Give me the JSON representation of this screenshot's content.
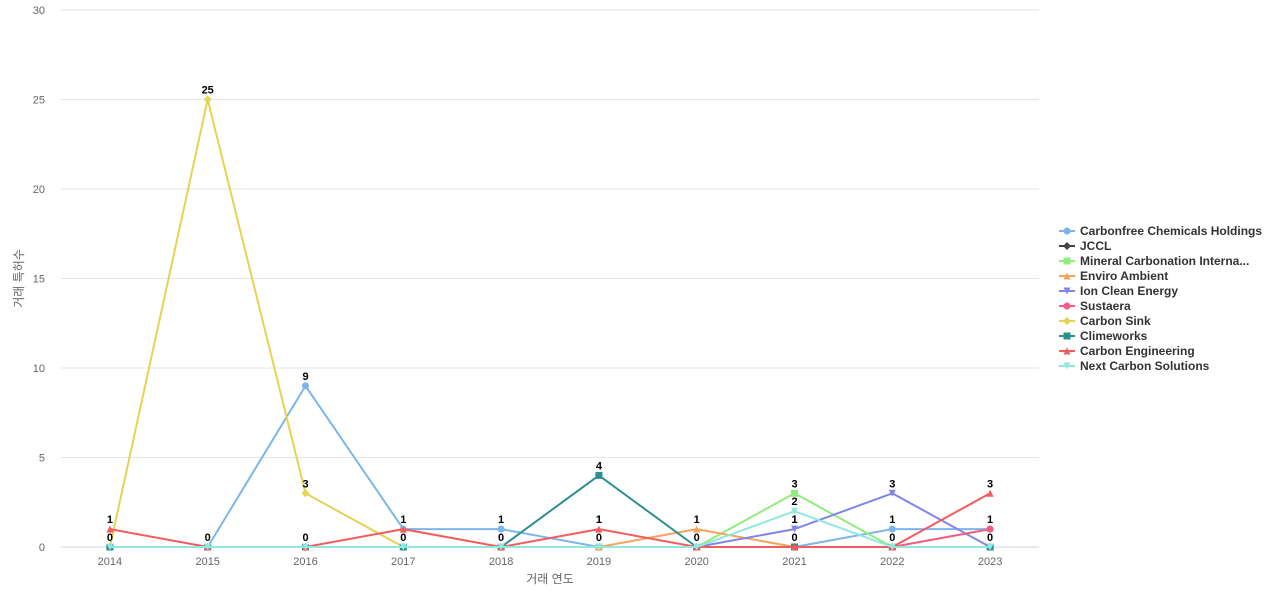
{
  "chart_data": {
    "type": "line",
    "xlabel": "거래 연도",
    "ylabel": "거래 특허수",
    "ylim": [
      0,
      30
    ],
    "y_ticks": [
      0,
      5,
      10,
      15,
      20,
      25,
      30
    ],
    "categories": [
      "2014",
      "2015",
      "2016",
      "2017",
      "2018",
      "2019",
      "2020",
      "2021",
      "2022",
      "2023"
    ],
    "grid": true,
    "legend_position": "right",
    "series": [
      {
        "name": "Carbonfree Chemicals Holdings",
        "color": "#7cb5ec",
        "marker": "circle",
        "values": [
          0,
          0,
          9,
          1,
          1,
          0,
          0,
          0,
          1,
          1
        ],
        "labels": [
          false,
          false,
          true,
          false,
          true,
          false,
          false,
          false,
          true,
          false
        ]
      },
      {
        "name": "JCCL",
        "color": "#434348",
        "marker": "diamond",
        "values": [
          0,
          0,
          0,
          0,
          0,
          0,
          0,
          0,
          0,
          0
        ],
        "labels": [
          false,
          false,
          false,
          false,
          false,
          false,
          false,
          false,
          false,
          false
        ]
      },
      {
        "name": "Mineral Carbonation Interna...",
        "color": "#90ed7d",
        "marker": "square",
        "values": [
          0,
          0,
          0,
          0,
          0,
          0,
          0,
          3,
          0,
          0
        ],
        "labels": [
          false,
          false,
          false,
          false,
          false,
          false,
          false,
          true,
          false,
          false
        ]
      },
      {
        "name": "Enviro Ambient",
        "color": "#f7a35c",
        "marker": "triangle",
        "values": [
          0,
          0,
          0,
          0,
          0,
          0,
          1,
          0,
          0,
          0
        ],
        "labels": [
          false,
          false,
          false,
          false,
          false,
          false,
          true,
          false,
          false,
          false
        ]
      },
      {
        "name": "Ion Clean Energy",
        "color": "#8085e9",
        "marker": "triangle-down",
        "values": [
          0,
          0,
          0,
          0,
          0,
          0,
          0,
          1,
          3,
          0
        ],
        "labels": [
          false,
          false,
          false,
          false,
          false,
          false,
          false,
          true,
          true,
          false
        ]
      },
      {
        "name": "Sustaera",
        "color": "#f15c80",
        "marker": "circle",
        "values": [
          0,
          0,
          0,
          0,
          0,
          0,
          0,
          0,
          0,
          1
        ],
        "labels": [
          false,
          false,
          false,
          false,
          false,
          false,
          false,
          false,
          false,
          false
        ]
      },
      {
        "name": "Carbon Sink",
        "color": "#e4d354",
        "marker": "diamond",
        "values": [
          0,
          25,
          3,
          0,
          0,
          0,
          0,
          0,
          0,
          0
        ],
        "labels": [
          false,
          true,
          true,
          false,
          false,
          false,
          false,
          false,
          false,
          false
        ]
      },
      {
        "name": "Climeworks",
        "color": "#2b908f",
        "marker": "square",
        "values": [
          0,
          0,
          0,
          0,
          0,
          4,
          0,
          0,
          0,
          0
        ],
        "labels": [
          false,
          false,
          false,
          false,
          false,
          true,
          false,
          false,
          false,
          false
        ]
      },
      {
        "name": "Carbon Engineering",
        "color": "#f45b5b",
        "marker": "triangle",
        "values": [
          1,
          0,
          0,
          1,
          0,
          1,
          0,
          0,
          0,
          3
        ],
        "labels": [
          true,
          false,
          false,
          true,
          false,
          true,
          false,
          false,
          false,
          true
        ]
      },
      {
        "name": "Next Carbon Solutions",
        "color": "#91e8e1",
        "marker": "triangle-down",
        "values": [
          0,
          0,
          0,
          0,
          0,
          0,
          0,
          2,
          0,
          0
        ],
        "labels": [
          true,
          true,
          true,
          true,
          true,
          true,
          true,
          true,
          true,
          true
        ]
      }
    ],
    "extra_labels": [
      {
        "category": "2019",
        "value": 1,
        "text": "1"
      },
      {
        "category": "2021",
        "value": 1,
        "text": "1"
      },
      {
        "category": "2021",
        "value": 0,
        "text": "0"
      },
      {
        "category": "2023",
        "value": 1,
        "text": "1"
      }
    ]
  }
}
